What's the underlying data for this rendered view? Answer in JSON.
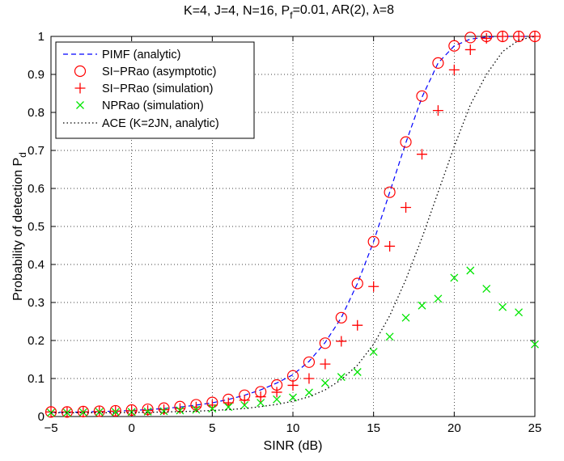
{
  "chart_data": {
    "type": "line",
    "title_parts": {
      "main": "K=4, J=4, N=16, P",
      "sub": "f",
      "rest": "=0.01, AR(2), λ=8"
    },
    "xlabel": "SINR (dB)",
    "ylabel": "Probability of detection P",
    "ylabel_sub": "d",
    "xlim": [
      -5,
      25
    ],
    "ylim": [
      0,
      1
    ],
    "xticks": [
      -5,
      0,
      5,
      10,
      15,
      20,
      25
    ],
    "yticks": [
      0,
      0.1,
      0.2,
      0.3,
      0.4,
      0.5,
      0.6,
      0.7,
      0.8,
      0.9,
      1
    ],
    "grid": true,
    "legend_position": "top-left",
    "x": [
      -5,
      -4,
      -3,
      -2,
      -1,
      0,
      1,
      2,
      3,
      4,
      5,
      6,
      7,
      8,
      9,
      10,
      11,
      12,
      13,
      14,
      15,
      16,
      17,
      18,
      19,
      20,
      21,
      22,
      23,
      24,
      25
    ],
    "series": [
      {
        "name": "PIMF (analytic)",
        "style": "dashed-line",
        "color": "#0000ff",
        "values": [
          0.011,
          0.011,
          0.012,
          0.013,
          0.014,
          0.016,
          0.018,
          0.021,
          0.025,
          0.03,
          0.036,
          0.045,
          0.056,
          0.07,
          0.088,
          0.11,
          0.145,
          0.195,
          0.26,
          0.35,
          0.46,
          0.59,
          0.72,
          0.84,
          0.93,
          0.975,
          0.993,
          0.998,
          1.0,
          1.0,
          1.0
        ]
      },
      {
        "name": "SI−PRao (asymptotic)",
        "style": "circle-markers",
        "color": "#ff0000",
        "values": [
          0.012,
          0.012,
          0.013,
          0.014,
          0.015,
          0.017,
          0.019,
          0.022,
          0.026,
          0.031,
          0.037,
          0.045,
          0.056,
          0.065,
          0.083,
          0.107,
          0.143,
          0.193,
          0.26,
          0.35,
          0.46,
          0.59,
          0.722,
          0.843,
          0.93,
          0.975,
          0.997,
          1.0,
          1.0,
          1.0,
          1.0
        ]
      },
      {
        "name": "SI−PRao (simulation)",
        "style": "plus-markers",
        "color": "#ff0000",
        "values": [
          0.012,
          0.012,
          0.012,
          0.013,
          0.014,
          0.015,
          0.016,
          0.018,
          0.021,
          0.025,
          0.03,
          0.036,
          0.043,
          0.052,
          0.064,
          0.082,
          0.1,
          0.138,
          0.198,
          0.24,
          0.342,
          0.448,
          0.55,
          0.69,
          0.805,
          0.912,
          0.965,
          0.995,
          1.0,
          1.0,
          1.0
        ]
      },
      {
        "name": "NPRao (simulation)",
        "style": "x-markers",
        "color": "#00e600",
        "values": [
          0.01,
          0.01,
          0.011,
          0.012,
          0.012,
          0.012,
          0.013,
          0.014,
          0.016,
          0.018,
          0.021,
          0.025,
          0.03,
          0.036,
          0.045,
          0.05,
          0.063,
          0.088,
          0.104,
          0.117,
          0.17,
          0.21,
          0.26,
          0.292,
          0.31,
          0.365,
          0.384,
          0.336,
          0.288,
          0.274,
          0.19
        ]
      },
      {
        "name": "ACE (K=2JN, analytic)",
        "style": "dotted-line",
        "color": "#000000",
        "values": [
          0.01,
          0.01,
          0.01,
          0.01,
          0.01,
          0.011,
          0.011,
          0.012,
          0.013,
          0.014,
          0.016,
          0.018,
          0.021,
          0.026,
          0.032,
          0.04,
          0.052,
          0.07,
          0.097,
          0.135,
          0.19,
          0.265,
          0.36,
          0.47,
          0.59,
          0.71,
          0.82,
          0.9,
          0.96,
          0.99,
          1.0
        ]
      }
    ]
  }
}
